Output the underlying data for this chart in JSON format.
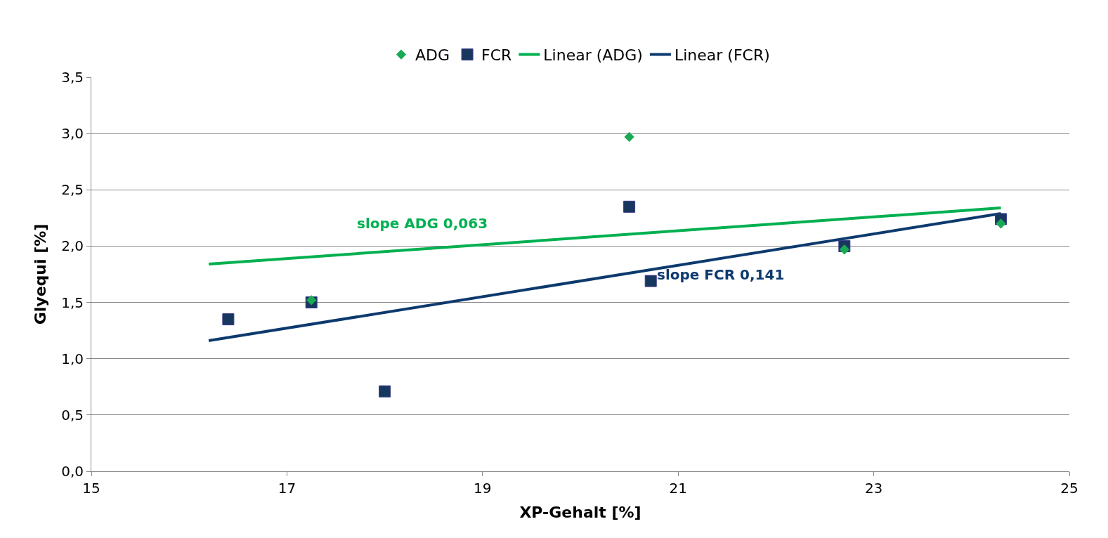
{
  "chart_data": {
    "type": "scatter",
    "xlabel": "XP-Gehalt [%]",
    "ylabel": "Glyequi [%]",
    "xlim": [
      15,
      25
    ],
    "xticks": [
      15,
      17,
      19,
      21,
      23,
      25
    ],
    "ylim": [
      0,
      3.5
    ],
    "yticks": [
      {
        "value": 0,
        "label": "0,0"
      },
      {
        "value": 0.5,
        "label": "0,5"
      },
      {
        "value": 1,
        "label": "1,0"
      },
      {
        "value": 1.5,
        "label": "1,5"
      },
      {
        "value": 2,
        "label": "2,0"
      },
      {
        "value": 2.5,
        "label": "2,5"
      },
      {
        "value": 3,
        "label": "3,0"
      },
      {
        "value": 3.5,
        "label": "3,5"
      }
    ],
    "grid": "y",
    "legend": "top",
    "series": [
      {
        "name": "ADG",
        "marker": "diamond",
        "color": "#1aaa55",
        "x": [
          17.25,
          20.5,
          22.7,
          24.3
        ],
        "values": [
          1.52,
          2.97,
          1.97,
          2.2
        ]
      },
      {
        "name": "FCR",
        "marker": "square",
        "color": "#17375e",
        "x": [
          16.4,
          17.25,
          18.0,
          20.5,
          20.72,
          22.7,
          24.3
        ],
        "values": [
          1.35,
          1.5,
          0.71,
          2.35,
          1.69,
          2.0,
          2.24
        ]
      },
      {
        "name": "Linear (ADG)",
        "type": "line",
        "marker": "none",
        "color": "#00b050",
        "x": [
          16.2,
          24.3
        ],
        "values": [
          1.84,
          2.34
        ]
      },
      {
        "name": "Linear (FCR)",
        "type": "line",
        "marker": "none",
        "color": "#0d3a6e",
        "x": [
          16.2,
          24.3
        ],
        "values": [
          1.16,
          2.29
        ]
      }
    ],
    "annotations": [
      "slope ADG 0,063",
      "slope FCR 0,141"
    ]
  }
}
